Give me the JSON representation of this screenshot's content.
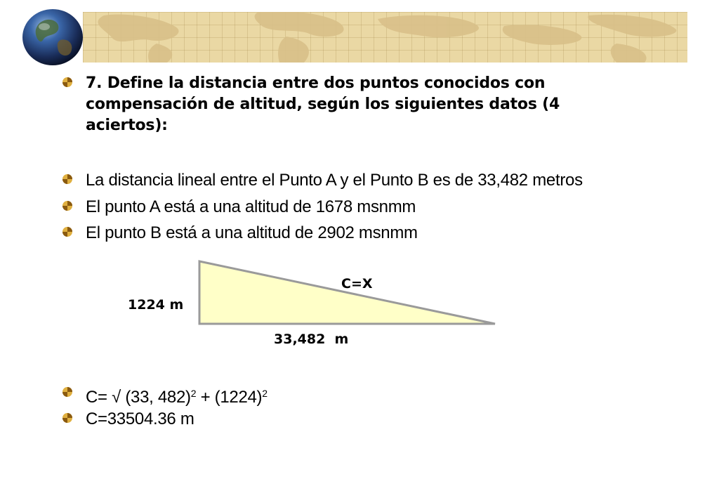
{
  "title": "7. Define la distancia entre dos puntos conocidos con compensación de altitud, según los siguientes datos (4 aciertos):",
  "statements": [
    "La distancia lineal entre el Punto A y el Punto B es de 33,482 metros",
    "El punto A está a una altitud de 1678 msnmm",
    "El punto B está a una altitud de 2902 msnmm"
  ],
  "diagram": {
    "hypotenuse_label": "C=X",
    "height_label": "1224 m",
    "base_label": "33,482  m",
    "fill_color": "#ffffc8"
  },
  "formula": {
    "prefix": "C= √ (33, 482)",
    "exp1": "2",
    "middle": " + (1224)",
    "exp2": "2"
  },
  "result": "C=33504.36 m"
}
